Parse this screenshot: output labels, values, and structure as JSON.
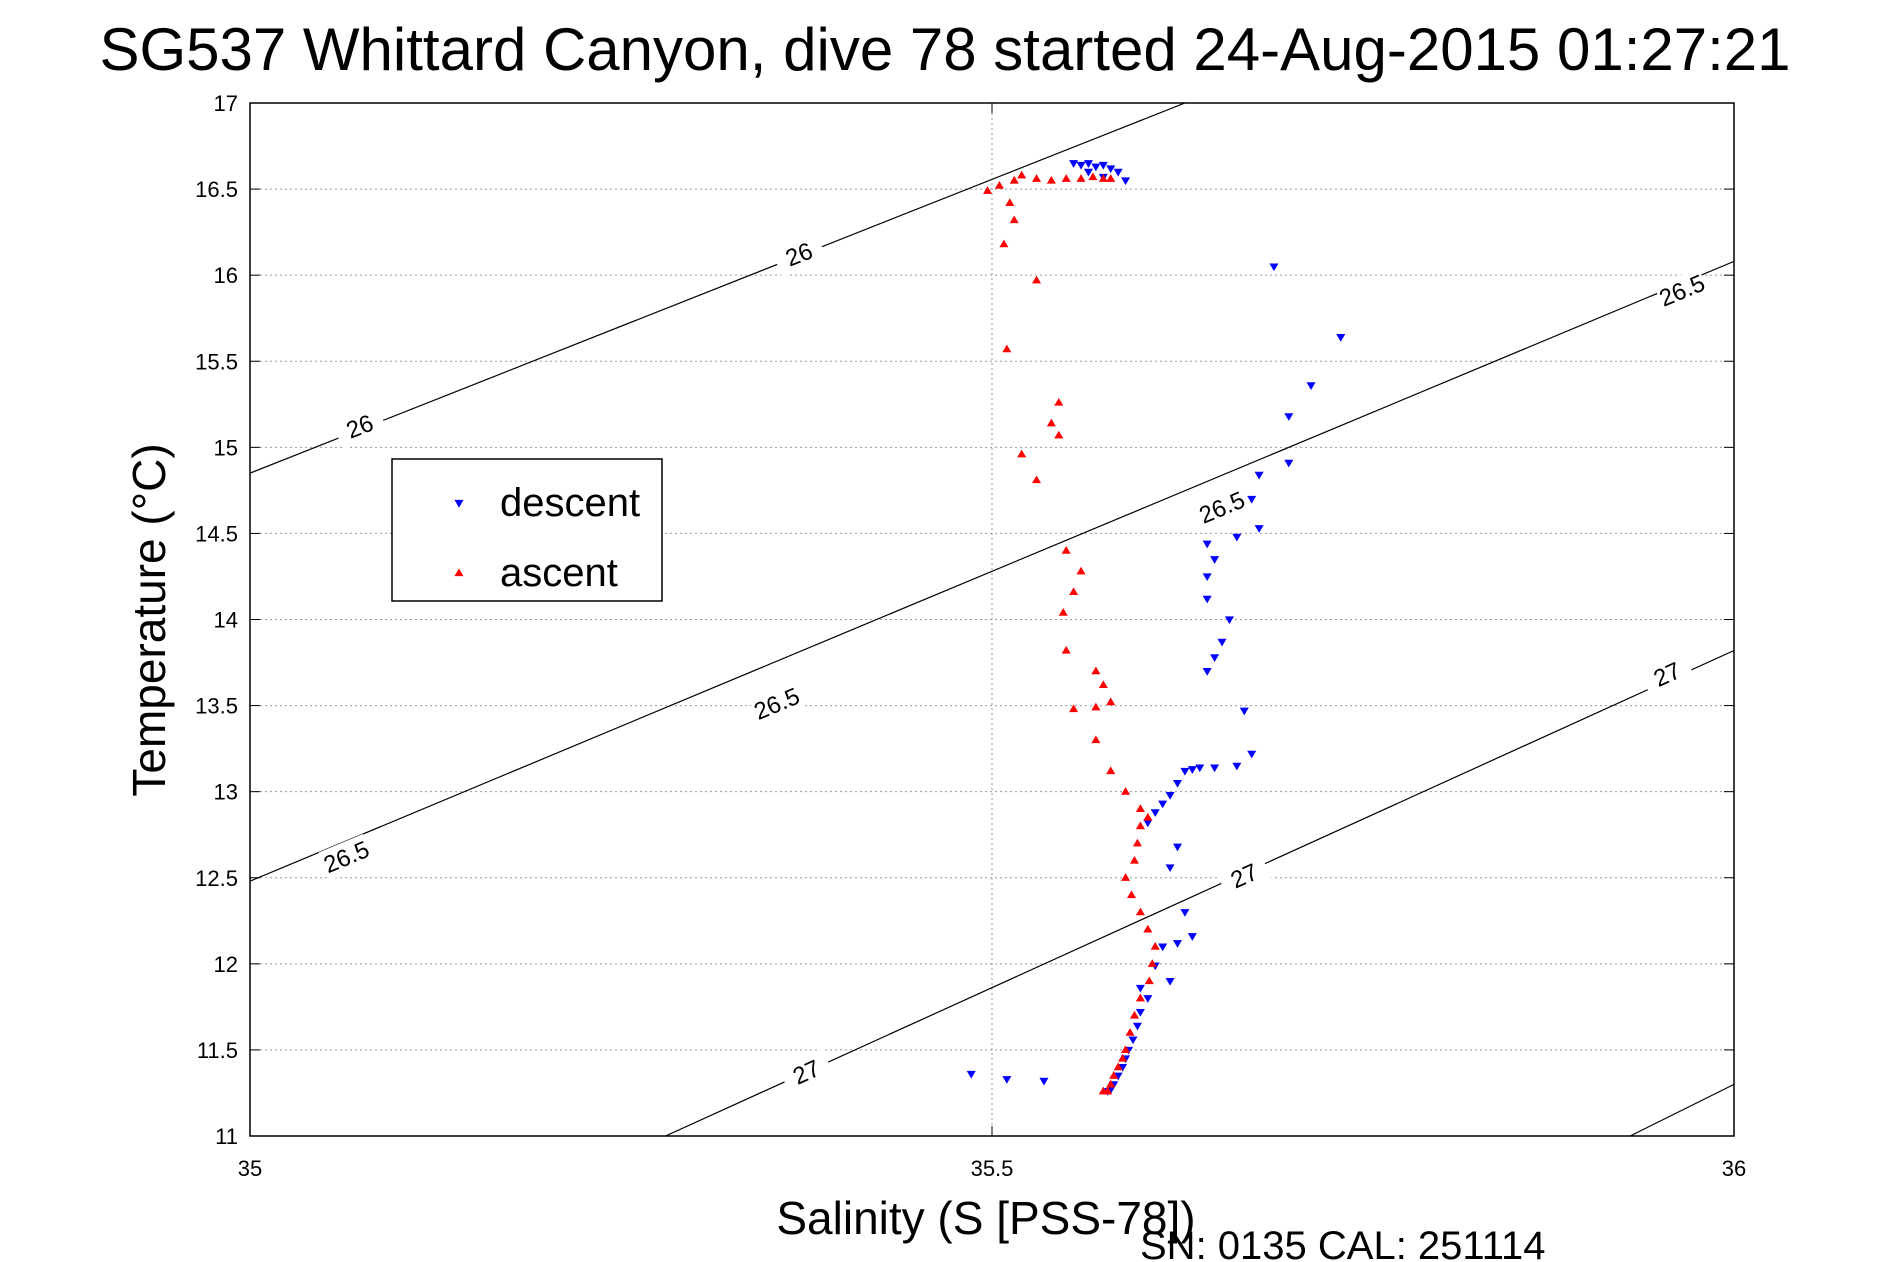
{
  "chart_data": {
    "type": "scatter",
    "title": "SG537 Whittard Canyon, dive 78 started 24-Aug-2015 01:27:21",
    "xlabel": "Salinity (S [PSS-78])",
    "ylabel": "Temperature (°C)",
    "xlim": [
      35,
      36
    ],
    "ylim": [
      11,
      17
    ],
    "x_ticks": [
      "35",
      "35.5",
      "36"
    ],
    "y_ticks": [
      "11",
      "11.5",
      "12",
      "12.5",
      "13",
      "13.5",
      "14",
      "14.5",
      "15",
      "15.5",
      "16",
      "16.5",
      "17"
    ],
    "grid": true,
    "legend_position": "upper-left",
    "footer": "SN: 0135  CAL: 251114",
    "isopycnals": [
      {
        "label": "26",
        "points": [
          [
            35.0,
            14.85
          ],
          [
            35.63,
            17.0
          ]
        ],
        "labels_at": [
          [
            35.074,
            15.12
          ],
          [
            35.37,
            16.12
          ]
        ]
      },
      {
        "label": "26.5",
        "points": [
          [
            35.0,
            12.48
          ],
          [
            36.0,
            16.08
          ]
        ],
        "labels_at": [
          [
            35.065,
            12.62
          ],
          [
            35.355,
            13.51
          ],
          [
            35.655,
            14.65
          ],
          [
            35.965,
            15.91
          ]
        ]
      },
      {
        "label": "27",
        "points": [
          [
            35.28,
            11.0
          ],
          [
            36.0,
            13.82
          ]
        ],
        "labels_at": [
          [
            35.375,
            11.37
          ],
          [
            35.67,
            12.51
          ],
          [
            35.955,
            13.68
          ]
        ]
      },
      {
        "label": "",
        "points": [
          [
            35.93,
            11.0
          ],
          [
            36.0,
            11.3
          ]
        ],
        "labels_at": []
      }
    ],
    "series": [
      {
        "name": "descent",
        "color": "#0000ff",
        "marker": "triangle-down",
        "points": [
          [
            35.555,
            16.65
          ],
          [
            35.56,
            16.64
          ],
          [
            35.565,
            16.65
          ],
          [
            35.57,
            16.63
          ],
          [
            35.575,
            16.64
          ],
          [
            35.58,
            16.62
          ],
          [
            35.585,
            16.6
          ],
          [
            35.59,
            16.55
          ],
          [
            35.575,
            16.57
          ],
          [
            35.565,
            16.6
          ],
          [
            35.69,
            16.05
          ],
          [
            35.735,
            15.64
          ],
          [
            35.715,
            15.36
          ],
          [
            35.7,
            15.18
          ],
          [
            35.7,
            14.91
          ],
          [
            35.68,
            14.84
          ],
          [
            35.675,
            14.7
          ],
          [
            35.68,
            14.53
          ],
          [
            35.665,
            14.48
          ],
          [
            35.645,
            14.44
          ],
          [
            35.65,
            14.35
          ],
          [
            35.645,
            14.25
          ],
          [
            35.645,
            14.12
          ],
          [
            35.66,
            14.0
          ],
          [
            35.655,
            13.87
          ],
          [
            35.65,
            13.78
          ],
          [
            35.645,
            13.7
          ],
          [
            35.67,
            13.47
          ],
          [
            35.675,
            13.22
          ],
          [
            35.665,
            13.15
          ],
          [
            35.65,
            13.14
          ],
          [
            35.64,
            13.14
          ],
          [
            35.635,
            13.13
          ],
          [
            35.63,
            13.12
          ],
          [
            35.625,
            13.05
          ],
          [
            35.62,
            12.98
          ],
          [
            35.615,
            12.93
          ],
          [
            35.61,
            12.88
          ],
          [
            35.605,
            12.82
          ],
          [
            35.625,
            12.68
          ],
          [
            35.62,
            12.56
          ],
          [
            35.63,
            12.3
          ],
          [
            35.635,
            12.16
          ],
          [
            35.625,
            12.12
          ],
          [
            35.615,
            12.1
          ],
          [
            35.61,
            11.99
          ],
          [
            35.62,
            11.9
          ],
          [
            35.6,
            11.86
          ],
          [
            35.605,
            11.8
          ],
          [
            35.6,
            11.72
          ],
          [
            35.598,
            11.64
          ],
          [
            35.595,
            11.56
          ],
          [
            35.592,
            11.5
          ],
          [
            35.59,
            11.45
          ],
          [
            35.588,
            11.4
          ],
          [
            35.585,
            11.35
          ],
          [
            35.582,
            11.3
          ],
          [
            35.58,
            11.27
          ],
          [
            35.578,
            11.26
          ],
          [
            35.486,
            11.36
          ],
          [
            35.51,
            11.33
          ],
          [
            35.535,
            11.32
          ]
        ]
      },
      {
        "name": "ascent",
        "color": "#ff0000",
        "marker": "triangle-up",
        "points": [
          [
            35.58,
            16.56
          ],
          [
            35.575,
            16.56
          ],
          [
            35.568,
            16.57
          ],
          [
            35.56,
            16.56
          ],
          [
            35.55,
            16.56
          ],
          [
            35.54,
            16.55
          ],
          [
            35.53,
            16.56
          ],
          [
            35.52,
            16.58
          ],
          [
            35.515,
            16.55
          ],
          [
            35.505,
            16.52
          ],
          [
            35.497,
            16.49
          ],
          [
            35.512,
            16.42
          ],
          [
            35.515,
            16.32
          ],
          [
            35.508,
            16.18
          ],
          [
            35.53,
            15.97
          ],
          [
            35.51,
            15.57
          ],
          [
            35.545,
            15.26
          ],
          [
            35.54,
            15.14
          ],
          [
            35.545,
            15.07
          ],
          [
            35.52,
            14.96
          ],
          [
            35.53,
            14.81
          ],
          [
            35.55,
            14.4
          ],
          [
            35.56,
            14.28
          ],
          [
            35.555,
            14.16
          ],
          [
            35.548,
            14.04
          ],
          [
            35.55,
            13.82
          ],
          [
            35.57,
            13.7
          ],
          [
            35.575,
            13.62
          ],
          [
            35.58,
            13.52
          ],
          [
            35.57,
            13.49
          ],
          [
            35.555,
            13.48
          ],
          [
            35.57,
            13.3
          ],
          [
            35.58,
            13.12
          ],
          [
            35.59,
            13.0
          ],
          [
            35.6,
            12.9
          ],
          [
            35.605,
            12.85
          ],
          [
            35.6,
            12.8
          ],
          [
            35.598,
            12.7
          ],
          [
            35.596,
            12.6
          ],
          [
            35.59,
            12.5
          ],
          [
            35.594,
            12.4
          ],
          [
            35.6,
            12.3
          ],
          [
            35.605,
            12.2
          ],
          [
            35.61,
            12.1
          ],
          [
            35.608,
            12.0
          ],
          [
            35.606,
            11.9
          ],
          [
            35.6,
            11.8
          ],
          [
            35.596,
            11.7
          ],
          [
            35.593,
            11.6
          ],
          [
            35.59,
            11.5
          ],
          [
            35.588,
            11.45
          ],
          [
            35.585,
            11.4
          ],
          [
            35.582,
            11.35
          ],
          [
            35.58,
            11.3
          ],
          [
            35.578,
            11.26
          ],
          [
            35.575,
            11.26
          ]
        ]
      }
    ]
  }
}
